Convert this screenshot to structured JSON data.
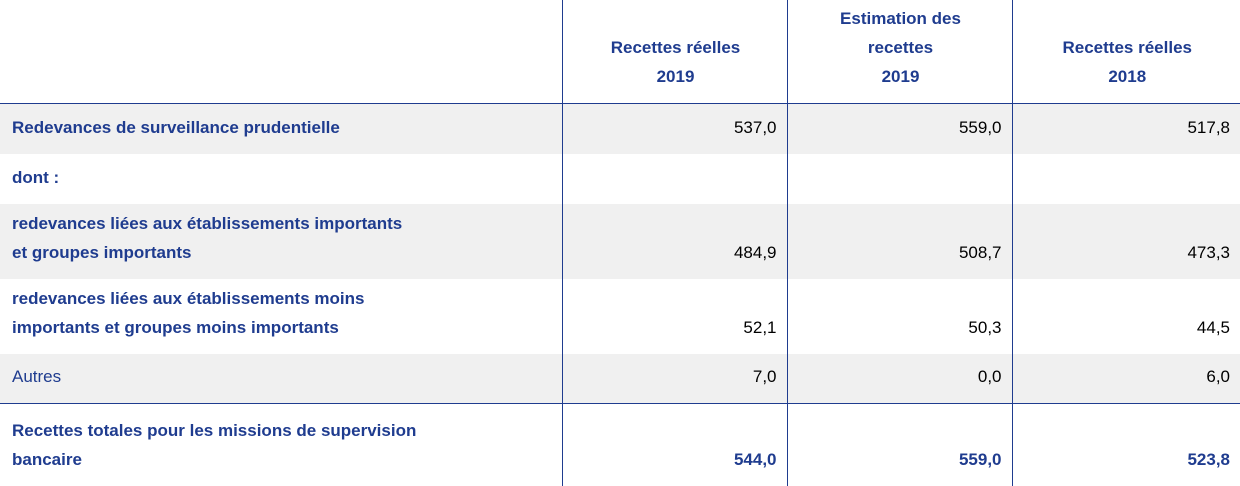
{
  "table": {
    "header": [
      "",
      "Recettes réelles\n2019",
      "Estimation des\nrecettes\n2019",
      "Recettes réelles\n2018"
    ],
    "rows": [
      [
        "Redevances de surveillance prudentielle",
        "537,0",
        "559,0",
        "517,8"
      ],
      [
        "dont :",
        "",
        "",
        ""
      ],
      [
        "redevances liées aux établissements importants\net groupes importants",
        "484,9",
        "508,7",
        "473,3"
      ],
      [
        "redevances liées aux établissements moins\nimportants et groupes moins importants",
        "52,1",
        "50,3",
        "44,5"
      ],
      [
        "Autres",
        "7,0",
        "0,0",
        "6,0"
      ],
      [
        "Recettes totales pour les missions de supervision\nbancaire",
        "544,0",
        "559,0",
        "523,8"
      ]
    ]
  }
}
